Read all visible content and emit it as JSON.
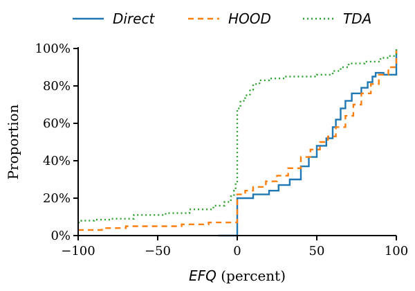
{
  "chart_data": {
    "type": "line",
    "step": true,
    "xlabel_var": "EFQ",
    "xlabel_unit": "(percent)",
    "ylabel": "Proportion",
    "xlim": [
      -100,
      100
    ],
    "ylim": [
      0,
      100
    ],
    "xticks": [
      -100,
      -50,
      0,
      50,
      100
    ],
    "xtick_labels": [
      "−100",
      "−50",
      "0",
      "50",
      "100"
    ],
    "yticks": [
      0,
      20,
      40,
      60,
      80,
      100
    ],
    "ytick_labels": [
      "0%",
      "20%",
      "40%",
      "60%",
      "80%",
      "100%"
    ],
    "legend_position": "top",
    "grid": false,
    "series": [
      {
        "name": "Direct",
        "color": "#1f77b4",
        "dash": "solid",
        "x": [
          -12,
          0,
          0,
          10,
          10,
          20,
          20,
          26,
          26,
          33,
          33,
          40,
          40,
          45,
          45,
          50,
          50,
          56,
          56,
          60,
          60,
          62,
          62,
          65,
          65,
          68,
          68,
          72,
          72,
          78,
          78,
          82,
          82,
          85,
          85,
          87,
          87,
          92,
          92,
          100,
          100
        ],
        "y": [
          0,
          0,
          20,
          20,
          22,
          22,
          24,
          24,
          27,
          27,
          30,
          30,
          37,
          37,
          42,
          42,
          48,
          48,
          52,
          52,
          58,
          58,
          62,
          62,
          68,
          68,
          72,
          72,
          76,
          76,
          79,
          79,
          82,
          82,
          85,
          85,
          87,
          87,
          86,
          86,
          99
        ]
      },
      {
        "name": "HOOD",
        "color": "#ff7f0e",
        "dash": "8,6",
        "x": [
          -100,
          -85,
          -85,
          -70,
          -70,
          -35,
          -35,
          -18,
          -18,
          0,
          0,
          5,
          5,
          10,
          10,
          18,
          18,
          25,
          25,
          32,
          32,
          40,
          40,
          46,
          46,
          52,
          52,
          57,
          57,
          62,
          62,
          68,
          68,
          73,
          73,
          78,
          78,
          84,
          84,
          89,
          89,
          95,
          95,
          100,
          100
        ],
        "y": [
          3,
          3,
          4,
          4,
          5,
          5,
          6,
          6,
          7,
          7,
          22,
          22,
          24,
          24,
          26,
          26,
          29,
          29,
          32,
          32,
          36,
          36,
          42,
          42,
          46,
          46,
          50,
          50,
          53,
          53,
          58,
          58,
          64,
          64,
          70,
          70,
          76,
          76,
          81,
          81,
          86,
          86,
          90,
          90,
          99
        ]
      },
      {
        "name": "TDA",
        "color": "#2ca02c",
        "dash": "2,4",
        "x": [
          -100,
          -98,
          -98,
          -90,
          -90,
          -80,
          -80,
          -65,
          -65,
          -45,
          -45,
          -30,
          -30,
          -15,
          -15,
          -8,
          -8,
          -4,
          -4,
          -2,
          -2,
          -1,
          -1,
          0,
          0,
          2,
          2,
          5,
          5,
          8,
          8,
          10,
          10,
          14,
          14,
          20,
          20,
          30,
          30,
          50,
          50,
          60,
          60,
          65,
          65,
          70,
          70,
          80,
          80,
          90,
          90,
          95,
          95,
          100,
          100
        ],
        "y": [
          7,
          7,
          8,
          8,
          8.5,
          8.5,
          9,
          9,
          11,
          11,
          12,
          12,
          14,
          14,
          16,
          16,
          18,
          18,
          21,
          21,
          24,
          24,
          28,
          28,
          68,
          68,
          72,
          72,
          75,
          75,
          78,
          78,
          81,
          81,
          83,
          83,
          84,
          84,
          85,
          85,
          86,
          86,
          88,
          88,
          90,
          90,
          92,
          92,
          93,
          93,
          95,
          95,
          96,
          96,
          100
        ]
      }
    ]
  }
}
